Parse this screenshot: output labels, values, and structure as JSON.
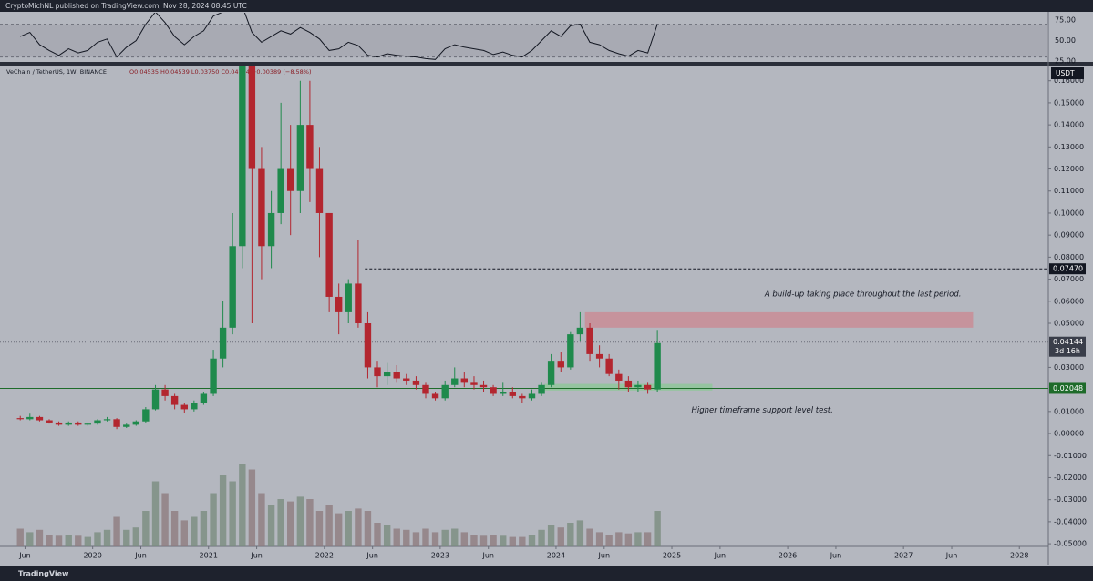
{
  "chart_data": {
    "type": "candlestick",
    "header": "CryptoMichNL published on TradingView.com, Nov 28, 2024 08:45 UTC",
    "legend": "VeChain / TetherUS, 1W, BINANCE",
    "ohlc_readout": "O0.04535 H0.04539 L0.03750 C0.04144 −0.00389 (−8.58%)",
    "currency": "USDT",
    "logo": "TradingView",
    "colors": {
      "up": "#1f8a4c",
      "down": "#b3262f"
    },
    "x": [
      2019.375,
      2019.458,
      2019.542,
      2019.625,
      2019.708,
      2019.792,
      2019.875,
      2019.958,
      2020.042,
      2020.125,
      2020.208,
      2020.292,
      2020.375,
      2020.458,
      2020.542,
      2020.625,
      2020.708,
      2020.792,
      2020.875,
      2020.958,
      2021.042,
      2021.125,
      2021.208,
      2021.292,
      2021.375,
      2021.458,
      2021.542,
      2021.625,
      2021.708,
      2021.792,
      2021.875,
      2021.958,
      2022.042,
      2022.125,
      2022.208,
      2022.292,
      2022.375,
      2022.458,
      2022.542,
      2022.625,
      2022.708,
      2022.792,
      2022.875,
      2022.958,
      2023.042,
      2023.125,
      2023.208,
      2023.292,
      2023.375,
      2023.458,
      2023.542,
      2023.625,
      2023.708,
      2023.792,
      2023.875,
      2023.958,
      2024.042,
      2024.125,
      2024.208,
      2024.292,
      2024.375,
      2024.458,
      2024.542,
      2024.625,
      2024.708,
      2024.792,
      2024.875
    ],
    "open": [
      0.007,
      0.0065,
      0.0075,
      0.006,
      0.005,
      0.004,
      0.005,
      0.004,
      0.0045,
      0.006,
      0.0065,
      0.003,
      0.004,
      0.0055,
      0.011,
      0.02,
      0.017,
      0.013,
      0.011,
      0.014,
      0.018,
      0.034,
      0.048,
      0.085,
      0.18,
      0.12,
      0.085,
      0.1,
      0.12,
      0.11,
      0.14,
      0.12,
      0.1,
      0.062,
      0.055,
      0.068,
      0.05,
      0.03,
      0.026,
      0.028,
      0.025,
      0.024,
      0.022,
      0.018,
      0.016,
      0.022,
      0.025,
      0.023,
      0.022,
      0.021,
      0.018,
      0.019,
      0.017,
      0.016,
      0.018,
      0.022,
      0.033,
      0.03,
      0.045,
      0.048,
      0.036,
      0.034,
      0.027,
      0.024,
      0.021,
      0.022,
      0.02
    ],
    "high": [
      0.008,
      0.009,
      0.008,
      0.0065,
      0.0055,
      0.0055,
      0.0055,
      0.005,
      0.0065,
      0.0075,
      0.007,
      0.0045,
      0.006,
      0.012,
      0.022,
      0.022,
      0.018,
      0.014,
      0.015,
      0.019,
      0.038,
      0.06,
      0.1,
      0.28,
      0.26,
      0.13,
      0.11,
      0.15,
      0.14,
      0.16,
      0.16,
      0.13,
      0.1,
      0.068,
      0.07,
      0.088,
      0.055,
      0.033,
      0.032,
      0.031,
      0.027,
      0.026,
      0.023,
      0.019,
      0.024,
      0.03,
      0.028,
      0.026,
      0.024,
      0.022,
      0.023,
      0.021,
      0.018,
      0.02,
      0.023,
      0.036,
      0.037,
      0.046,
      0.055,
      0.05,
      0.04,
      0.036,
      0.029,
      0.026,
      0.024,
      0.023,
      0.047
    ],
    "low": [
      0.006,
      0.006,
      0.0055,
      0.0045,
      0.0035,
      0.0035,
      0.0035,
      0.0035,
      0.004,
      0.0055,
      0.002,
      0.0025,
      0.0035,
      0.005,
      0.0105,
      0.015,
      0.011,
      0.0095,
      0.01,
      0.013,
      0.017,
      0.03,
      0.045,
      0.075,
      0.05,
      0.07,
      0.075,
      0.095,
      0.09,
      0.1,
      0.105,
      0.08,
      0.055,
      0.045,
      0.05,
      0.048,
      0.025,
      0.021,
      0.022,
      0.023,
      0.022,
      0.02,
      0.016,
      0.015,
      0.015,
      0.021,
      0.021,
      0.02,
      0.019,
      0.017,
      0.017,
      0.016,
      0.014,
      0.015,
      0.017,
      0.021,
      0.028,
      0.029,
      0.042,
      0.033,
      0.03,
      0.026,
      0.02,
      0.019,
      0.019,
      0.018,
      0.019
    ],
    "close": [
      0.0065,
      0.0075,
      0.006,
      0.005,
      0.004,
      0.005,
      0.004,
      0.0045,
      0.006,
      0.0065,
      0.003,
      0.004,
      0.0055,
      0.011,
      0.02,
      0.017,
      0.013,
      0.011,
      0.014,
      0.018,
      0.034,
      0.048,
      0.085,
      0.18,
      0.12,
      0.085,
      0.1,
      0.12,
      0.11,
      0.14,
      0.12,
      0.1,
      0.062,
      0.055,
      0.068,
      0.05,
      0.03,
      0.026,
      0.028,
      0.025,
      0.024,
      0.022,
      0.018,
      0.016,
      0.022,
      0.025,
      0.023,
      0.022,
      0.021,
      0.018,
      0.019,
      0.017,
      0.016,
      0.018,
      0.022,
      0.033,
      0.03,
      0.045,
      0.048,
      0.036,
      0.034,
      0.027,
      0.024,
      0.021,
      0.022,
      0.02,
      0.041
    ],
    "volume": [
      15,
      12,
      14,
      10,
      9,
      10,
      9,
      8,
      12,
      14,
      25,
      14,
      16,
      30,
      55,
      45,
      30,
      22,
      25,
      30,
      45,
      60,
      55,
      70,
      65,
      45,
      35,
      40,
      38,
      42,
      40,
      30,
      35,
      28,
      30,
      32,
      30,
      20,
      18,
      15,
      14,
      12,
      15,
      12,
      14,
      15,
      12,
      10,
      9,
      10,
      9,
      8,
      8,
      10,
      14,
      18,
      16,
      20,
      22,
      15,
      12,
      10,
      12,
      11,
      12,
      12,
      30
    ],
    "rsi": [
      55,
      60,
      45,
      38,
      32,
      40,
      35,
      38,
      48,
      52,
      30,
      42,
      50,
      70,
      85,
      72,
      55,
      45,
      55,
      62,
      80,
      85,
      88,
      92,
      60,
      48,
      55,
      62,
      58,
      66,
      60,
      52,
      38,
      40,
      48,
      44,
      32,
      30,
      34,
      32,
      31,
      30,
      28,
      27,
      40,
      45,
      42,
      40,
      38,
      33,
      36,
      32,
      30,
      38,
      50,
      62,
      55,
      68,
      70,
      48,
      45,
      38,
      34,
      31,
      38,
      35,
      70
    ],
    "rsi_ylim": [
      24,
      84
    ],
    "rsi_band": [
      30,
      70
    ],
    "rsi_ticks": [
      {
        "value": 75,
        "label": "75.00"
      },
      {
        "value": 50,
        "label": "50.00"
      },
      {
        "value": 25,
        "label": "25.00"
      }
    ],
    "xlim": [
      2019.2,
      2028.25
    ],
    "xticks": [
      {
        "value": 2019.416,
        "label": "Jun"
      },
      {
        "value": 2020,
        "label": "2020"
      },
      {
        "value": 2020.416,
        "label": "Jun"
      },
      {
        "value": 2021,
        "label": "2021"
      },
      {
        "value": 2021.416,
        "label": "Jun"
      },
      {
        "value": 2022,
        "label": "2022"
      },
      {
        "value": 2022.416,
        "label": "Jun"
      },
      {
        "value": 2023,
        "label": "2023"
      },
      {
        "value": 2023.416,
        "label": "Jun"
      },
      {
        "value": 2024,
        "label": "2024"
      },
      {
        "value": 2024.416,
        "label": "Jun"
      },
      {
        "value": 2025,
        "label": "2025"
      },
      {
        "value": 2025.416,
        "label": "Jun"
      },
      {
        "value": 2026,
        "label": "2026"
      },
      {
        "value": 2026.416,
        "label": "Jun"
      },
      {
        "value": 2027,
        "label": "2027"
      },
      {
        "value": 2027.416,
        "label": "Jun"
      },
      {
        "value": 2028,
        "label": "2028"
      }
    ],
    "ylim": [
      -0.0512,
      0.1669
    ],
    "yticks": [
      {
        "value": 0.16,
        "label": "0.16000"
      },
      {
        "value": 0.15,
        "label": "0.15000"
      },
      {
        "value": 0.14,
        "label": "0.14000"
      },
      {
        "value": 0.13,
        "label": "0.13000"
      },
      {
        "value": 0.12,
        "label": "0.12000"
      },
      {
        "value": 0.11,
        "label": "0.11000"
      },
      {
        "value": 0.1,
        "label": "0.10000"
      },
      {
        "value": 0.09,
        "label": "0.09000"
      },
      {
        "value": 0.08,
        "label": "0.08000"
      },
      {
        "value": 0.07,
        "label": "0.07000"
      },
      {
        "value": 0.06,
        "label": "0.06000"
      },
      {
        "value": 0.05,
        "label": "0.05000"
      },
      {
        "value": 0.03,
        "label": "0.03000"
      },
      {
        "value": 0.01,
        "label": "0.01000"
      },
      {
        "value": 0,
        "label": "0.00000"
      },
      {
        "value": -0.01,
        "label": "-0.01000"
      },
      {
        "value": -0.02,
        "label": "-0.02000"
      },
      {
        "value": -0.03,
        "label": "-0.03000"
      },
      {
        "value": -0.04,
        "label": "-0.04000"
      },
      {
        "value": -0.05,
        "label": "-0.05000"
      }
    ],
    "levels": [
      {
        "value": 0.0747,
        "label": "0.07470",
        "from": 2022.35,
        "color": "#131722",
        "style": "dashed"
      },
      {
        "value": 0.02048,
        "label": "0.02048",
        "from": 2019.2,
        "color": "#1e6b2a",
        "style": "solid"
      }
    ],
    "last_price": {
      "value": 0.04144,
      "label": "0.04144",
      "countdown": "3d 16h"
    },
    "zones": [
      {
        "x": [
          2024.25,
          2027.6
        ],
        "y": [
          0.048,
          0.055
        ],
        "color": "#c98d95"
      },
      {
        "x": [
          2023.9,
          2025.35
        ],
        "y": [
          0.0195,
          0.0225
        ],
        "color": "#8fc79a"
      }
    ],
    "annotations": [
      {
        "text": "A build-up taking place throughout the last period.",
        "x": 2026.65,
        "y": 0.0633
      },
      {
        "text": "Higher timeframe support level test.",
        "x": 2025.78,
        "y": 0.0105
      }
    ]
  }
}
